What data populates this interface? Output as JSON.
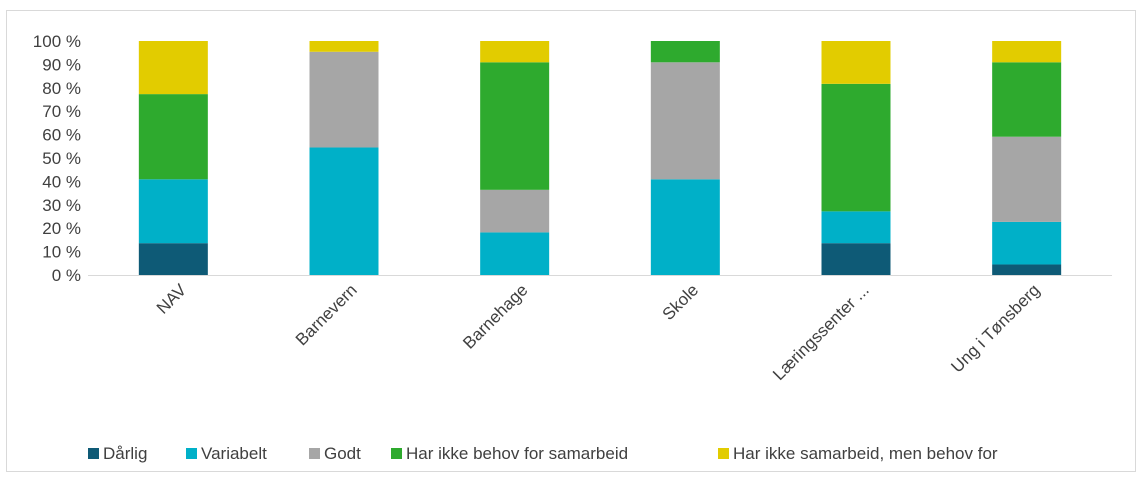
{
  "chart_data": {
    "type": "bar",
    "stacked": true,
    "percent_stacked": true,
    "categories": [
      "NAV",
      "Barnevern",
      "Barnehage",
      "Skole",
      "Læringssenter ...",
      "Ung i Tønsberg"
    ],
    "series": [
      {
        "name": "Dårlig",
        "color": "#0e5a76",
        "values": [
          13.6,
          0,
          0,
          0,
          13.6,
          4.5
        ]
      },
      {
        "name": "Variabelt",
        "color": "#00b0c8",
        "values": [
          27.3,
          54.5,
          18.2,
          40.9,
          13.6,
          18.2
        ]
      },
      {
        "name": "Godt",
        "color": "#a6a6a6",
        "values": [
          0,
          40.9,
          18.2,
          50.0,
          0,
          36.4
        ]
      },
      {
        "name": "Har ikke behov for samarbeid",
        "color": "#2eaa2e",
        "values": [
          36.4,
          0,
          54.5,
          9.1,
          54.5,
          31.8
        ]
      },
      {
        "name": "Har ikke samarbeid, men behov for",
        "color": "#e2cc00",
        "values": [
          22.7,
          4.6,
          9.1,
          0,
          18.3,
          9.1
        ]
      }
    ],
    "y_ticks": [
      "0 %",
      "10 %",
      "20 %",
      "30 %",
      "40 %",
      "50 %",
      "60 %",
      "70 %",
      "80 %",
      "90 %",
      "100 %"
    ],
    "ylim": [
      0,
      100
    ],
    "grid": false,
    "legend_position": "bottom"
  }
}
